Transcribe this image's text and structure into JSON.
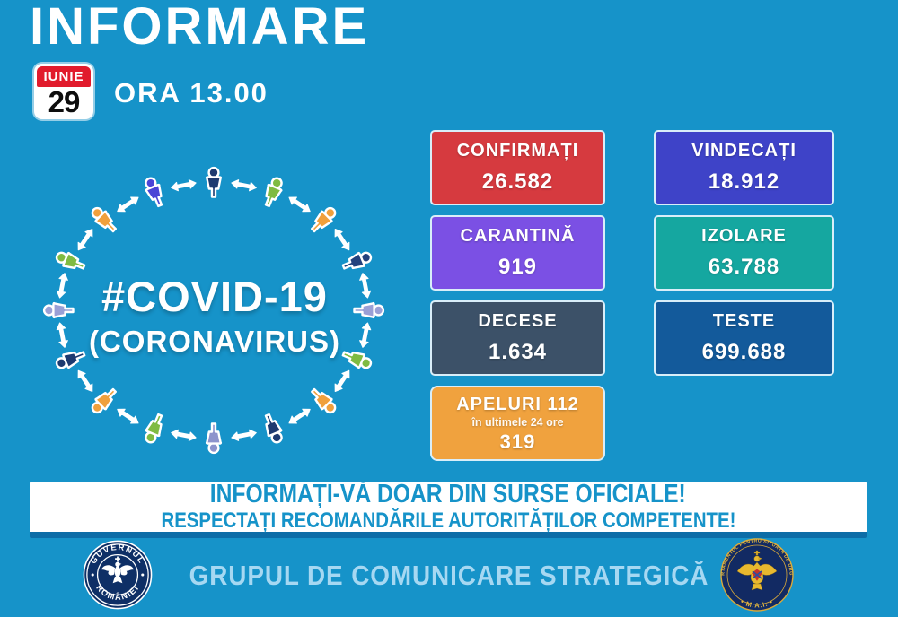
{
  "header": {
    "title": "INFORMARE",
    "time": "ORA 13.00",
    "calendar": {
      "month": "IUNIE",
      "day": "29"
    }
  },
  "ring": {
    "label_line1": "#COVID-19",
    "label_line2": "(CORONAVIRUS)",
    "arrow_color": "#ffffff",
    "people_colors": [
      "#1d3a70",
      "#7fbb42",
      "#f0a03c",
      "#24427d",
      "#9aa0d6",
      "#7fbb42",
      "#f0a03c",
      "#1d3a70",
      "#8d93cc",
      "#7fbb42",
      "#f0a03c",
      "#1d3a70",
      "#9aa0d6",
      "#7fbb42",
      "#f0a03c",
      "#4b45d6"
    ]
  },
  "stats": [
    {
      "label": "CONFIRMAȚI",
      "value": "26.582",
      "color": "#d63a3f"
    },
    {
      "label": "VINDECAȚI",
      "value": "18.912",
      "color": "#3e43c8"
    },
    {
      "label": "CARANTINĂ",
      "value": "919",
      "color": "#7b50e4"
    },
    {
      "label": "IZOLARE",
      "value": "63.788",
      "color": "#15a7a0"
    },
    {
      "label": "DECESE",
      "value": "1.634",
      "color": "#3c5168"
    },
    {
      "label": "TESTE",
      "value": "699.688",
      "color": "#135a9b"
    },
    {
      "label": "APELURI 112",
      "sub": "în ultimele 24 ore",
      "value": "319",
      "color": "#f0a23e"
    }
  ],
  "banner": {
    "line1": "INFORMAȚI-VĂ DOAR DIN SURSE OFICIALE!",
    "line2": "RESPECTAȚI RECOMANDĂRILE AUTORITĂȚILOR COMPETENTE!"
  },
  "footer": {
    "text": "GRUPUL DE COMUNICARE STRATEGICĂ",
    "seal_left": {
      "top": "GUVERNUL",
      "bottom": "ROMÂNIEI"
    },
    "seal_right": {
      "top": "DEPARTAMENTUL PENTRU SITUAȚII DE URGENȚĂ",
      "bottom": "• M.A.I. •"
    }
  },
  "colors": {
    "background": "#1693c9",
    "banner_text": "#1693c9",
    "banner_edge": "#0d6da7",
    "box_border": "#d9eef9",
    "footer_text": "#a6d8f2",
    "calendar_red": "#e11b2c"
  }
}
